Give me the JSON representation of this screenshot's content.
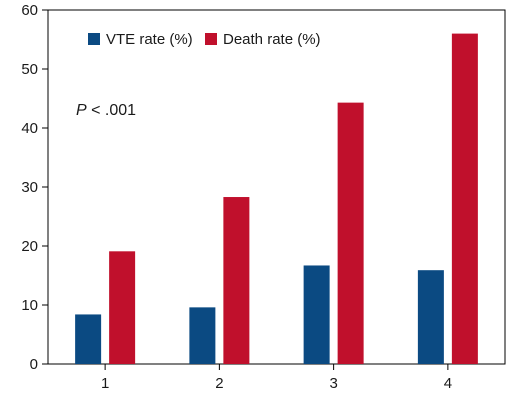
{
  "chart_data": {
    "type": "bar",
    "title": "",
    "xlabel": "",
    "ylabel": "",
    "categories": [
      "1",
      "2",
      "3",
      "4"
    ],
    "ylim": [
      0,
      60
    ],
    "yticks": [
      "0",
      "10",
      "20",
      "30",
      "40",
      "50",
      "60"
    ],
    "grid": false,
    "legend_position": "top-center",
    "series": [
      {
        "name": "VTE rate (%)",
        "color": "#0b4a82",
        "values": [
          8.4,
          9.6,
          16.7,
          15.9
        ]
      },
      {
        "name": "Death rate (%)",
        "color": "#c0102c",
        "values": [
          19.1,
          28.3,
          44.3,
          56.0
        ]
      }
    ],
    "annotation": {
      "italic_part": "P",
      "rest": " < .001"
    }
  }
}
